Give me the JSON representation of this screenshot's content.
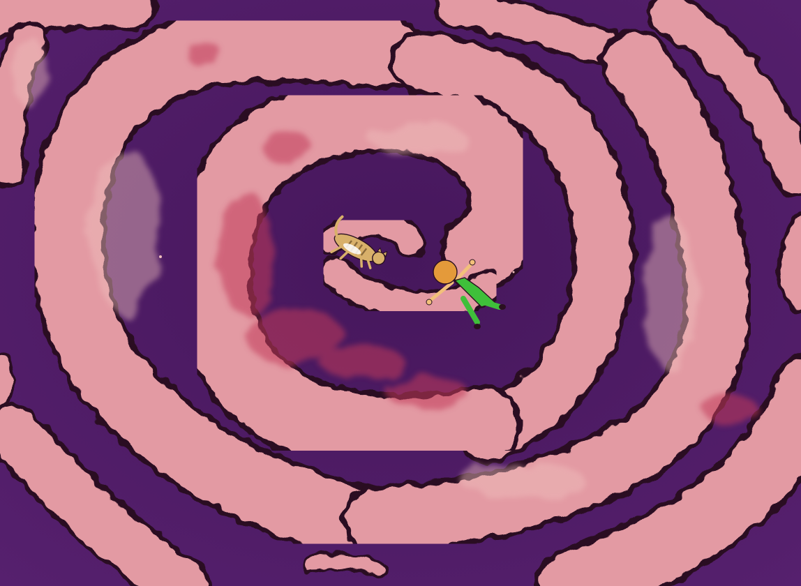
{
  "colors": {
    "background": "#56206e",
    "background_dark": "#46175c",
    "cloud_pink": "#e39aa3",
    "cloud_light": "#f0c0bd",
    "cloud_deep": "#c23a5a",
    "outline": "#2a1020",
    "cat_fur": "#d8b06a",
    "cat_stripe": "#8a6a3a",
    "child_hair": "#e49a3a",
    "child_skin": "#f2c07a",
    "child_overalls": "#3fbf3a"
  },
  "subjects": {
    "cat_icon": "cat-icon",
    "child_icon": "child-icon"
  }
}
